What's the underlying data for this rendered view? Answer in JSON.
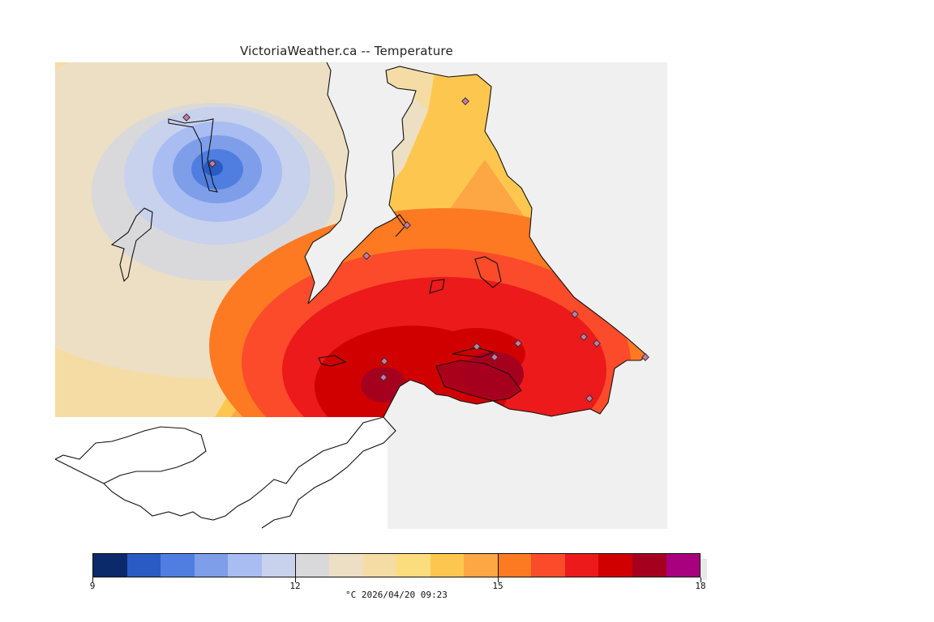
{
  "title": "VictoriaWeather.ca -- Temperature",
  "legend": {
    "colors": [
      "#0b2a6a",
      "#2a5bc4",
      "#4f7ee0",
      "#7e9eea",
      "#a9bdf2",
      "#c8d2ec",
      "#d9d9dc",
      "#ecdfc3",
      "#f5dca4",
      "#fbdd7e",
      "#fdc74f",
      "#fda644",
      "#fd7a22",
      "#fb4b2a",
      "#ec1a1a",
      "#d10000",
      "#a6001f",
      "#a8007e"
    ],
    "min": 9,
    "max": 18,
    "ticks": [
      {
        "value": 9,
        "label": "9"
      },
      {
        "value": 12,
        "label": "12"
      },
      {
        "value": 15,
        "label": "15"
      },
      {
        "value": 18,
        "label": "18"
      }
    ],
    "units_time": "°C  2026/04/20 09:23"
  }
}
